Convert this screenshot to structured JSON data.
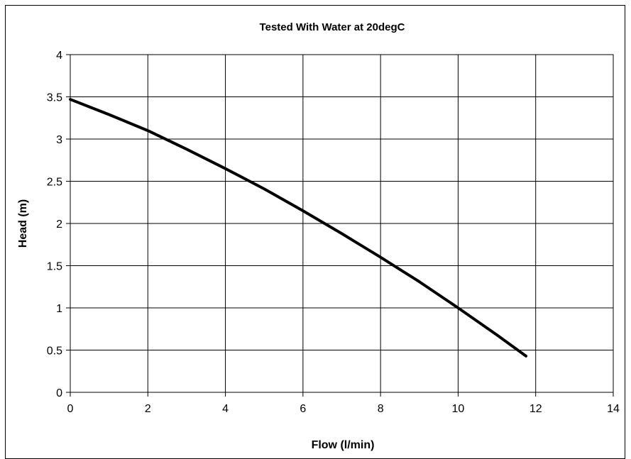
{
  "chart_data": {
    "type": "line",
    "title": "Tested With Water at 20degC",
    "xlabel": "Flow (l/min)",
    "ylabel": "Head (m)",
    "xlim": [
      0,
      14
    ],
    "ylim": [
      0,
      4
    ],
    "x_ticks": [
      0,
      2,
      4,
      6,
      8,
      10,
      12,
      14
    ],
    "y_ticks": [
      0,
      0.5,
      1,
      1.5,
      2,
      2.5,
      3,
      3.5,
      4
    ],
    "x_tick_labels": [
      "0",
      "2",
      "4",
      "6",
      "8",
      "10",
      "12",
      "14"
    ],
    "y_tick_labels": [
      "0",
      "0.5",
      "1",
      "1.5",
      "2",
      "2.5",
      "3",
      "3.5",
      "4"
    ],
    "grid": true,
    "legend": "none",
    "series": [
      {
        "color": "#000000",
        "x": [
          0,
          1,
          2,
          3,
          4,
          5,
          6,
          7,
          8,
          9,
          10,
          11,
          11.75
        ],
        "y": [
          3.47,
          3.29,
          3.1,
          2.88,
          2.65,
          2.41,
          2.15,
          1.88,
          1.6,
          1.31,
          1.0,
          0.68,
          0.43
        ]
      }
    ]
  }
}
